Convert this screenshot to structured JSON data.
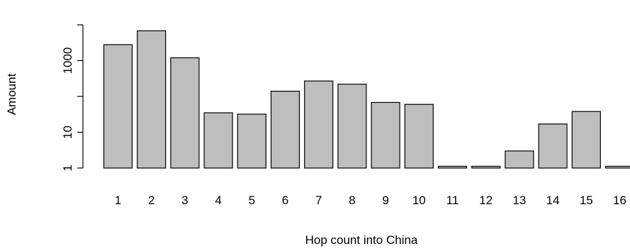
{
  "chart_data": {
    "type": "bar",
    "xlabel": "Hop count into China",
    "ylabel": "Amount",
    "yscale": "log",
    "ylim": [
      1,
      7000
    ],
    "categories": [
      "1",
      "2",
      "3",
      "4",
      "5",
      "6",
      "7",
      "8",
      "9",
      "10",
      "11",
      "12",
      "13",
      "14",
      "15",
      "16"
    ],
    "values": [
      2800,
      6800,
      1200,
      35,
      32,
      140,
      270,
      220,
      68,
      60,
      1,
      1,
      3,
      17,
      38,
      1
    ],
    "yticks": [
      {
        "value": 1,
        "label": "1"
      },
      {
        "value": 10,
        "label": "10"
      },
      {
        "value": 100,
        "label": ""
      },
      {
        "value": 1000,
        "label": "1000"
      },
      {
        "value": 10000,
        "label": ""
      }
    ],
    "bar_color": "#bebebe",
    "grid": false,
    "legend": "none"
  }
}
